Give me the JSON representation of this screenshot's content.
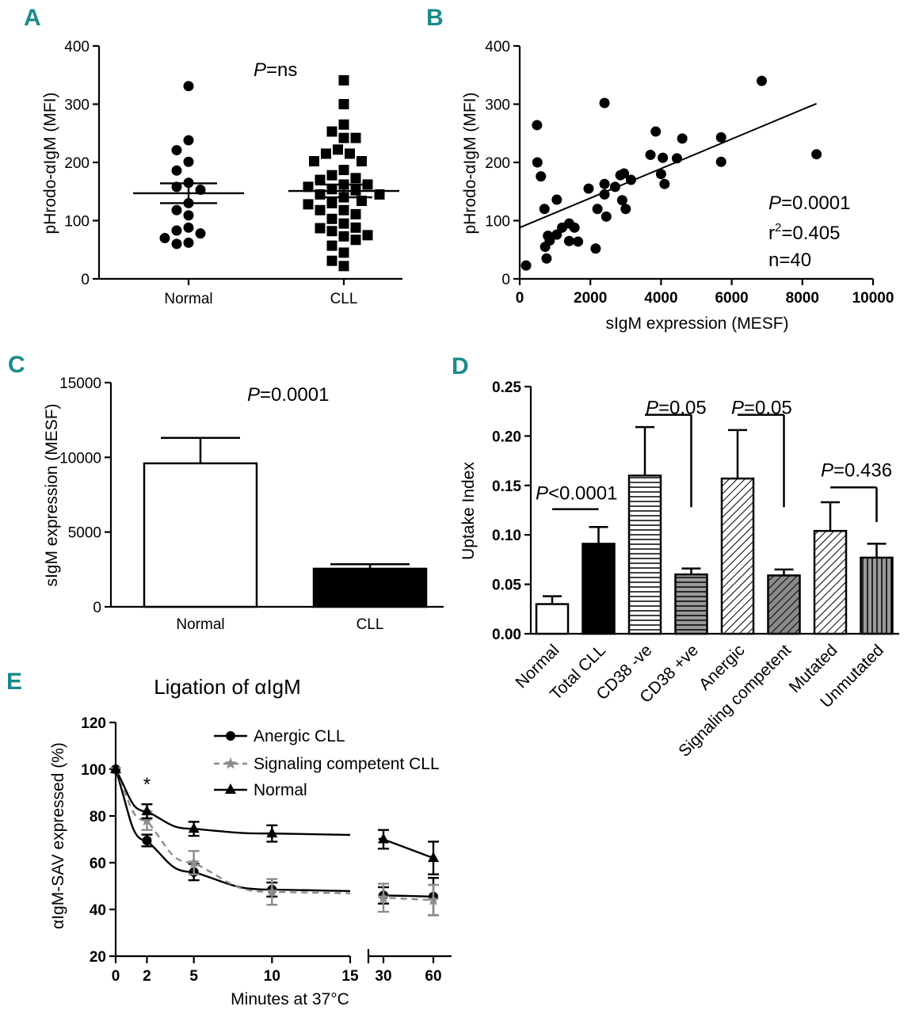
{
  "panels": {
    "A": {
      "label": "A"
    },
    "B": {
      "label": "B"
    },
    "C": {
      "label": "C"
    },
    "D": {
      "label": "D"
    },
    "E": {
      "label": "E"
    }
  },
  "chart_data": [
    {
      "id": "A",
      "type": "scatter",
      "ylabel": "pHrodo-αIgM (MFI)",
      "ylim": [
        0,
        400
      ],
      "yticks": [
        0,
        100,
        200,
        300,
        400
      ],
      "categories": [
        "Normal",
        "CLL"
      ],
      "annotation_italic": "P",
      "annotation_rest": "=ns",
      "groups": [
        {
          "name": "Normal",
          "marker": "circle",
          "mean": 147,
          "sem_low": 130,
          "sem_high": 164,
          "values": [
            331,
            238,
            221,
            201,
            186,
            165,
            158,
            153,
            130,
            118,
            109,
            88,
            83,
            78,
            70,
            62,
            60
          ]
        },
        {
          "name": "CLL",
          "marker": "square",
          "mean": 151,
          "sem_low": 140,
          "sem_high": 162,
          "values": [
            341,
            300,
            265,
            253,
            242,
            242,
            222,
            215,
            215,
            202,
            202,
            187,
            178,
            173,
            170,
            162,
            162,
            158,
            154,
            152,
            145,
            145,
            140,
            134,
            130,
            128,
            118,
            118,
            111,
            103,
            95,
            88,
            87,
            82,
            75,
            73,
            67,
            57,
            45,
            31,
            22
          ]
        }
      ]
    },
    {
      "id": "B",
      "type": "scatter",
      "xlabel": "sIgM expression (MESF)",
      "ylabel": "pHrodo-αIgM (MFI)",
      "xlim": [
        0,
        10000
      ],
      "ylim": [
        0,
        400
      ],
      "xticks": [
        0,
        2000,
        4000,
        6000,
        8000,
        10000
      ],
      "yticks": [
        0,
        100,
        200,
        300,
        400
      ],
      "fit_line": {
        "x": [
          0,
          8400
        ],
        "y": [
          88,
          301
        ]
      },
      "stats": {
        "p_italic": "P",
        "p_rest": "=0.0001",
        "r2_prefix": "r",
        "r2_sup": "2",
        "r2_rest": "=0.405",
        "n": "n=40"
      },
      "points": [
        {
          "x": 180,
          "y": 23
        },
        {
          "x": 490,
          "y": 264
        },
        {
          "x": 500,
          "y": 200
        },
        {
          "x": 600,
          "y": 176
        },
        {
          "x": 700,
          "y": 120
        },
        {
          "x": 720,
          "y": 55
        },
        {
          "x": 760,
          "y": 35
        },
        {
          "x": 800,
          "y": 74
        },
        {
          "x": 850,
          "y": 66
        },
        {
          "x": 1050,
          "y": 76
        },
        {
          "x": 1050,
          "y": 136
        },
        {
          "x": 1200,
          "y": 88
        },
        {
          "x": 1400,
          "y": 95
        },
        {
          "x": 1400,
          "y": 65
        },
        {
          "x": 1550,
          "y": 88
        },
        {
          "x": 1650,
          "y": 64
        },
        {
          "x": 1950,
          "y": 155
        },
        {
          "x": 2150,
          "y": 52
        },
        {
          "x": 2200,
          "y": 120
        },
        {
          "x": 2400,
          "y": 145
        },
        {
          "x": 2400,
          "y": 302
        },
        {
          "x": 2400,
          "y": 163
        },
        {
          "x": 2450,
          "y": 107
        },
        {
          "x": 2700,
          "y": 158
        },
        {
          "x": 2850,
          "y": 178
        },
        {
          "x": 2900,
          "y": 135
        },
        {
          "x": 2950,
          "y": 181
        },
        {
          "x": 3000,
          "y": 120
        },
        {
          "x": 3150,
          "y": 170
        },
        {
          "x": 3700,
          "y": 213
        },
        {
          "x": 3850,
          "y": 253
        },
        {
          "x": 4000,
          "y": 180
        },
        {
          "x": 4050,
          "y": 208
        },
        {
          "x": 4100,
          "y": 163
        },
        {
          "x": 4450,
          "y": 207
        },
        {
          "x": 4600,
          "y": 241
        },
        {
          "x": 5700,
          "y": 243
        },
        {
          "x": 5700,
          "y": 201
        },
        {
          "x": 6850,
          "y": 340
        },
        {
          "x": 8400,
          "y": 214
        }
      ]
    },
    {
      "id": "C",
      "type": "bar",
      "ylabel": "sIgM expression (MESF)",
      "ylim": [
        0,
        15000
      ],
      "yticks": [
        0,
        5000,
        10000,
        15000
      ],
      "categories": [
        "Normal",
        "CLL"
      ],
      "values": [
        9600,
        2550
      ],
      "errors": [
        1700,
        300
      ],
      "fills": [
        "#ffffff",
        "#000000"
      ],
      "annotation_italic": "P",
      "annotation_rest": "=0.0001"
    },
    {
      "id": "D",
      "type": "bar",
      "ylabel": "Uptake Index",
      "ylim": [
        0,
        0.25
      ],
      "yticks": [
        "0.00",
        "0.05",
        "0.10",
        "0.15",
        "0.20",
        "0.25"
      ],
      "categories": [
        "Normal",
        "Total CLL",
        "CD38 -ve",
        "CD38 +ve",
        "Anergic",
        "Signaling competent",
        "Mutated",
        "Unmutated"
      ],
      "values": [
        0.03,
        0.091,
        0.16,
        0.06,
        0.157,
        0.059,
        0.104,
        0.077
      ],
      "errors": [
        0.008,
        0.017,
        0.049,
        0.006,
        0.049,
        0.006,
        0.029,
        0.014
      ],
      "patterns": [
        "white",
        "black",
        "hlines",
        "hlines-grey",
        "diag",
        "diag-grey",
        "diag",
        "vlines-grey"
      ],
      "comparisons": [
        {
          "italic": "P",
          "rest": "<0.0001"
        },
        {
          "italic": "P",
          "rest": "=0.05"
        },
        {
          "italic": "P",
          "rest": "=0.05"
        },
        {
          "italic": "P",
          "rest": "=0.436"
        }
      ]
    },
    {
      "id": "E",
      "type": "line",
      "title": "Ligation of αIgM",
      "xlabel": "Minutes at 37°C",
      "ylabel": "αIgM-SAV expressed (%)",
      "ylim": [
        20,
        120
      ],
      "yticks": [
        20,
        40,
        60,
        80,
        100,
        120
      ],
      "xticks": [
        "0",
        "2",
        "5",
        "10",
        "15",
        "30",
        "60"
      ],
      "x": [
        0,
        2,
        5,
        10,
        30,
        60
      ],
      "star": "*",
      "series": [
        {
          "name": "Anergic CLL",
          "marker": "circle",
          "color": "#000000",
          "dashed": false,
          "values": [
            100,
            69.5,
            56,
            48.5,
            46,
            45.5
          ],
          "errors": [
            0,
            2.5,
            3.5,
            3,
            3.5,
            8
          ]
        },
        {
          "name": "Signaling competent CLL",
          "marker": "star",
          "color": "#8c8c8c",
          "dashed": true,
          "values": [
            100,
            78,
            60,
            47.5,
            45,
            44
          ],
          "errors": [
            0,
            4,
            5,
            5.5,
            6,
            6.5
          ]
        },
        {
          "name": "Normal",
          "marker": "triangle",
          "color": "#000000",
          "dashed": false,
          "values": [
            100,
            82,
            74.5,
            72.5,
            70,
            62
          ],
          "errors": [
            0,
            3,
            3,
            3.5,
            4,
            7
          ]
        }
      ]
    }
  ]
}
